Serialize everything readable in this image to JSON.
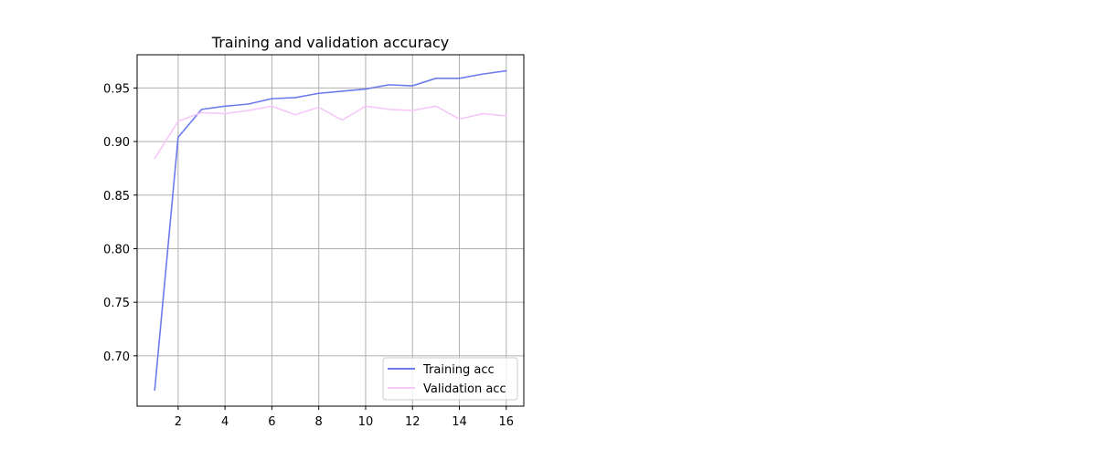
{
  "chart_data": {
    "type": "line",
    "title": "Training and validation accuracy",
    "xlabel": "",
    "ylabel": "",
    "xlim": [
      0.25,
      16.75
    ],
    "ylim": [
      0.653,
      0.981
    ],
    "x_ticks": [
      2,
      4,
      6,
      8,
      10,
      12,
      14,
      16
    ],
    "y_ticks": [
      0.7,
      0.75,
      0.8,
      0.85,
      0.9,
      0.95
    ],
    "x_tick_labels": [
      "2",
      "4",
      "6",
      "8",
      "10",
      "12",
      "14",
      "16"
    ],
    "y_tick_labels": [
      "0.70",
      "0.75",
      "0.80",
      "0.85",
      "0.90",
      "0.95"
    ],
    "grid": true,
    "legend_position": "lower-right",
    "x": [
      1,
      2,
      3,
      4,
      5,
      6,
      7,
      8,
      9,
      10,
      11,
      12,
      13,
      14,
      15,
      16
    ],
    "series": [
      {
        "name": "Training acc",
        "color": "#6b7bec",
        "values": [
          0.668,
          0.904,
          0.93,
          0.933,
          0.935,
          0.94,
          0.941,
          0.945,
          0.947,
          0.949,
          0.953,
          0.952,
          0.959,
          0.959,
          0.963,
          0.966
        ]
      },
      {
        "name": "Validation acc",
        "color": "#f6c8f8",
        "values": [
          0.884,
          0.919,
          0.927,
          0.926,
          0.929,
          0.933,
          0.925,
          0.932,
          0.92,
          0.933,
          0.93,
          0.929,
          0.933,
          0.921,
          0.926,
          0.924
        ]
      }
    ]
  }
}
